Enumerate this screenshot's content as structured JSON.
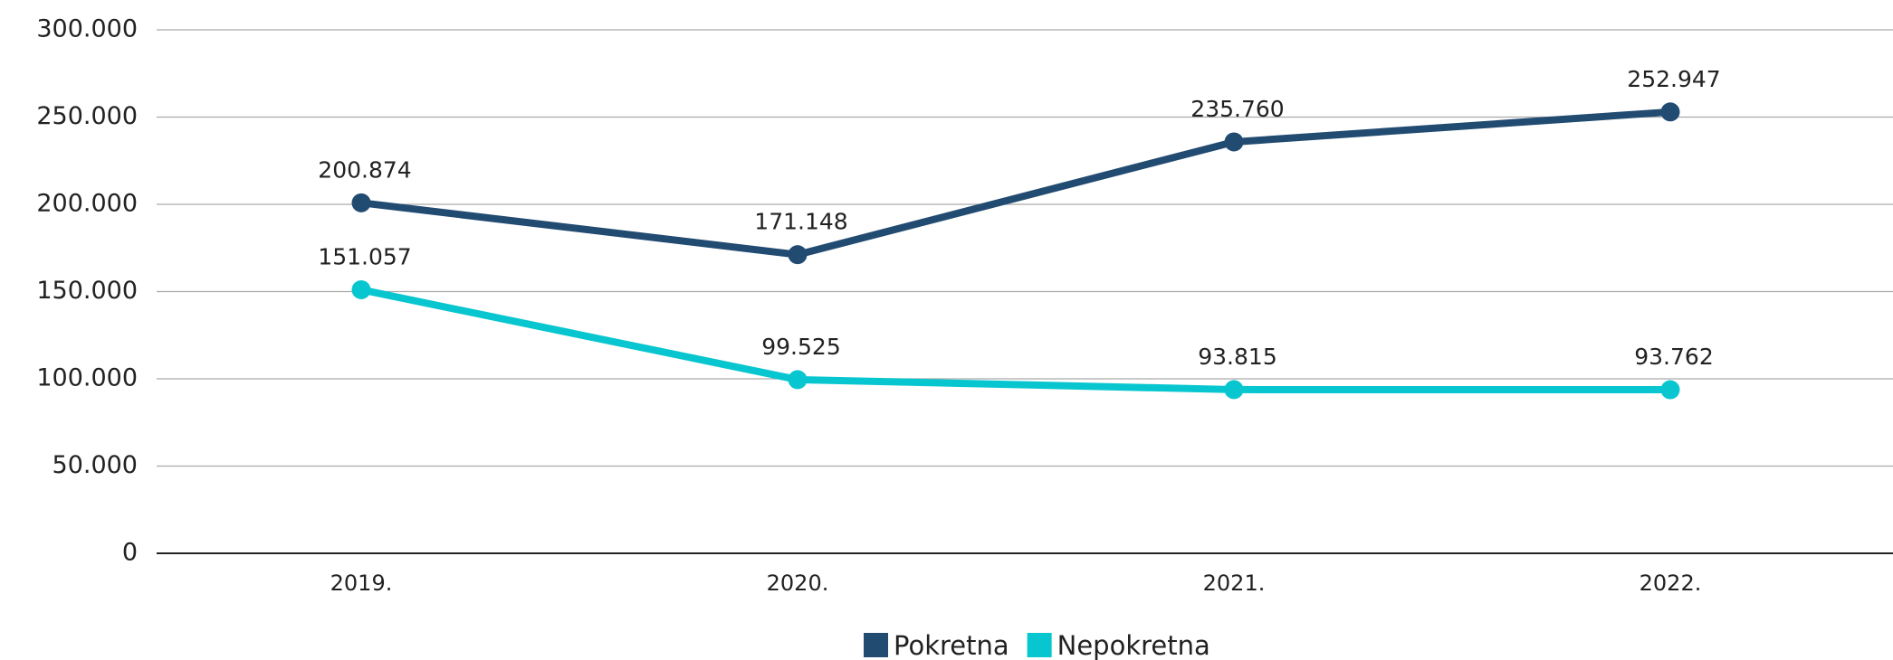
{
  "chart_data": {
    "type": "line",
    "categories": [
      "2019.",
      "2020.",
      "2021.",
      "2022."
    ],
    "series": [
      {
        "name": "Pokretna",
        "color": "#224b71",
        "values": [
          200874,
          171148,
          235760,
          252947
        ],
        "value_labels": [
          "200.874",
          "171.148",
          "235.760",
          "252.947"
        ]
      },
      {
        "name": "Nepokretna",
        "color": "#08c6cf",
        "values": [
          151057,
          99525,
          93815,
          93762
        ],
        "value_labels": [
          "151.057",
          "99.525",
          "93.815",
          "93.762"
        ]
      }
    ],
    "ylim": [
      0,
      300000
    ],
    "yticks": [
      0,
      {
        "value": 50000,
        "label": "50.000"
      },
      {
        "value": 100000,
        "label": "100.000"
      },
      {
        "value": 150000,
        "label": "150.000"
      },
      {
        "value": 200000,
        "label": "200.000"
      },
      {
        "value": 250000,
        "label": "250.000"
      },
      {
        "value": 300000,
        "label": "300.000"
      }
    ],
    "grid": true,
    "legend": "bottom"
  }
}
